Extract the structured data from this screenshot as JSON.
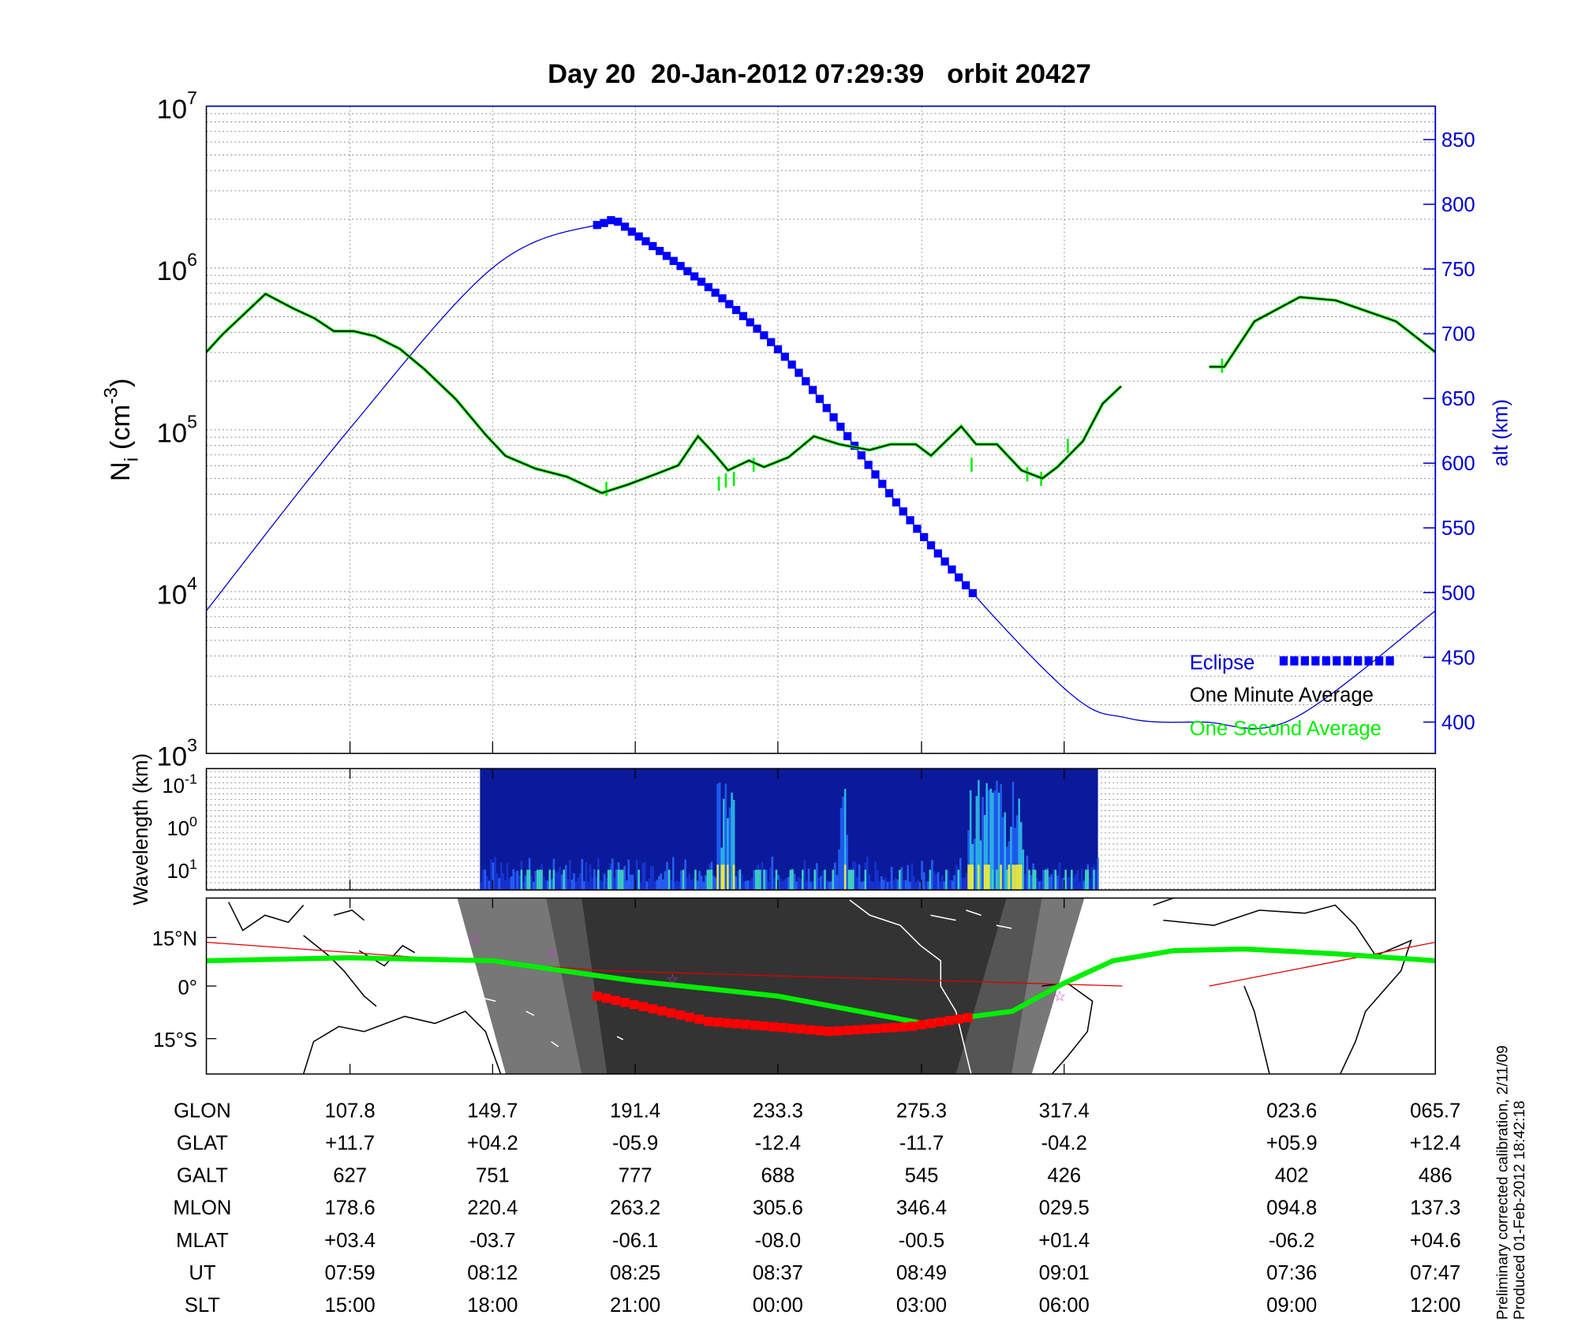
{
  "title": "Day 20  20-Jan-2012 07:29:39   orbit 20427",
  "colors": {
    "alt": "#0000cc",
    "eclipse": "#0000ff",
    "minute": "#000000",
    "second": "#00ee00",
    "map_track": "#00ee00",
    "map_eclipse": "#ff0000",
    "mag_equator": "#dd0000",
    "star": "#cc33cc"
  },
  "chart_data": [
    {
      "type": "line",
      "panel": "ion-density",
      "x_unit": "minutes from panel start",
      "xlim": [
        0,
        106
      ],
      "ylabel": {
        "base": "N",
        "sub": "i",
        "open": " (cm",
        "sup": "-3",
        "close": ")"
      },
      "yscale": "log",
      "ylim": [
        1000,
        10000000
      ],
      "ytick_base": "10",
      "ytick_exponents": [
        "3",
        "4",
        "5",
        "6",
        "7"
      ],
      "y2label": "alt (km)",
      "y2lim": [
        378,
        875
      ],
      "y2ticks": [
        "400",
        "450",
        "500",
        "550",
        "600",
        "650",
        "700",
        "750",
        "800",
        "850"
      ],
      "x_ticks_minutes": [
        12.4,
        24.7,
        37.0,
        49.3,
        61.7,
        74.0
      ],
      "series": [
        {
          "name": "One Minute Average",
          "segments": [
            [
              [
                0,
                302000
              ],
              [
                1.4,
                389000
              ],
              [
                5.1,
                692000
              ],
              [
                7.5,
                562000
              ],
              [
                9.3,
                490000
              ],
              [
                11.0,
                407000
              ],
              [
                12.7,
                407000
              ],
              [
                14.5,
                380000
              ],
              [
                16.7,
                316000
              ],
              [
                18.8,
                237000
              ],
              [
                21.5,
                155000
              ],
              [
                24.1,
                93000
              ],
              [
                25.8,
                69000
              ],
              [
                28.4,
                57500
              ],
              [
                31.1,
                51300
              ],
              [
                34.1,
                40700
              ],
              [
                36.3,
                45700
              ],
              [
                38.9,
                53700
              ],
              [
                40.7,
                60300
              ],
              [
                42.4,
                91200
              ],
              [
                43.7,
                72400
              ],
              [
                45.0,
                56200
              ],
              [
                46.8,
                64600
              ],
              [
                48.1,
                58900
              ],
              [
                50.2,
                67600
              ],
              [
                52.4,
                91200
              ],
              [
                54.6,
                81300
              ],
              [
                57.2,
                75000
              ],
              [
                59.0,
                81300
              ],
              [
                61.2,
                81300
              ],
              [
                62.5,
                69200
              ],
              [
                65.1,
                105000
              ],
              [
                66.4,
                81300
              ],
              [
                68.2,
                81300
              ],
              [
                70.3,
                56200
              ],
              [
                72.1,
                50100
              ],
              [
                73.4,
                58900
              ],
              [
                75.6,
                85100
              ],
              [
                77.3,
                145000
              ],
              [
                78.9,
                186000
              ]
            ],
            [
              [
                86.5,
                245000
              ],
              [
                87.8,
                245000
              ],
              [
                90.4,
                468000
              ],
              [
                94.3,
                661000
              ],
              [
                97.4,
                631000
              ],
              [
                102.6,
                468000
              ],
              [
                106.0,
                302000
              ]
            ]
          ]
        },
        {
          "name": "One Second Average",
          "spikes": [
            [
              34.5,
              39000
            ],
            [
              44.2,
              42000
            ],
            [
              44.8,
              44000
            ],
            [
              45.5,
              45000
            ],
            [
              47.2,
              55000
            ],
            [
              66.0,
              55000
            ],
            [
              70.8,
              48000
            ],
            [
              72.0,
              45000
            ],
            [
              74.3,
              72000
            ],
            [
              87.6,
              225000
            ]
          ]
        },
        {
          "name": "Altitude",
          "axis": "right",
          "points": [
            [
              0,
              486
            ],
            [
              12.4,
              627
            ],
            [
              24.7,
              751
            ],
            [
              33.7,
              784
            ],
            [
              37.0,
              777
            ],
            [
              49.3,
              688
            ],
            [
              61.7,
              545
            ],
            [
              74.0,
              426
            ],
            [
              79.5,
              403
            ],
            [
              86.0,
              400
            ],
            [
              93.6,
              402
            ],
            [
              106.0,
              486
            ]
          ]
        },
        {
          "name": "Eclipse",
          "range": [
            33.7,
            66.4
          ]
        }
      ],
      "legend": {
        "position": "bottom-right",
        "entries": [
          "Eclipse",
          "One Minute Average",
          "One Second Average"
        ]
      }
    },
    {
      "type": "heatmap",
      "panel": "spectrogram",
      "ylabel": "Wavelength (km)",
      "ytick_base": "10",
      "ytick_exponents": [
        "-1",
        "0",
        "1"
      ],
      "x_range_minutes": [
        23.6,
        76.9
      ],
      "bright_bands_minutes": [
        [
          44.0,
          45.5
        ],
        [
          54.4,
          55.2
        ],
        [
          65.5,
          70.5
        ]
      ]
    },
    {
      "type": "line",
      "panel": "map",
      "yticks": [
        "15°N",
        "0°",
        "15°S"
      ],
      "track_lat": [
        [
          0,
          7.5
        ],
        [
          12.4,
          8.4
        ],
        [
          24.7,
          7.5
        ],
        [
          37.0,
          1.5
        ],
        [
          49.3,
          -3
        ],
        [
          61.7,
          -11
        ],
        [
          69.5,
          -7.5
        ],
        [
          74.0,
          0.9
        ],
        [
          78.2,
          7.5
        ],
        [
          83.4,
          10.5
        ],
        [
          89.5,
          11
        ],
        [
          97.3,
          9.6
        ],
        [
          106.0,
          7.5
        ]
      ],
      "eclipse_lat": [
        [
          33.7,
          -3
        ],
        [
          43.3,
          -10.5
        ],
        [
          53.8,
          -13.5
        ],
        [
          60.8,
          -12
        ],
        [
          66.4,
          -9
        ]
      ],
      "mag_equator": [
        [
          [
            0,
            13
          ],
          [
            34.6,
            4.5
          ],
          [
            79.0,
            0
          ]
        ],
        [
          [
            86.5,
            0
          ],
          [
            106,
            13
          ]
        ]
      ],
      "stars": [
        [
          23.2,
          14
        ],
        [
          29.8,
          9.9
        ],
        [
          40.2,
          2.1
        ],
        [
          73.6,
          -3
        ]
      ]
    }
  ],
  "table": {
    "rows": [
      {
        "label": "GLON",
        "values": [
          "107.8",
          "149.7",
          "191.4",
          "233.3",
          "275.3",
          "317.4",
          "023.6",
          "065.7"
        ]
      },
      {
        "label": "GLAT",
        "values": [
          "+11.7",
          "+04.2",
          "-05.9",
          "-12.4",
          "-11.7",
          "-04.2",
          "+05.9",
          "+12.4"
        ]
      },
      {
        "label": "GALT",
        "values": [
          "627",
          "751",
          "777",
          "688",
          "545",
          "426",
          "402",
          "486"
        ]
      },
      {
        "label": "MLON",
        "values": [
          "178.6",
          "220.4",
          "263.2",
          "305.6",
          "346.4",
          "029.5",
          "094.8",
          "137.3"
        ]
      },
      {
        "label": "MLAT",
        "values": [
          "+03.4",
          "-03.7",
          "-06.1",
          "-08.0",
          "-00.5",
          "+01.4",
          "-06.2",
          "+04.6"
        ]
      },
      {
        "label": "UT",
        "values": [
          "07:59",
          "08:12",
          "08:25",
          "08:37",
          "08:49",
          "09:01",
          "07:36",
          "07:47"
        ]
      },
      {
        "label": "SLT",
        "values": [
          "15:00",
          "18:00",
          "21:00",
          "00:00",
          "03:00",
          "06:00",
          "09:00",
          "12:00"
        ]
      }
    ]
  },
  "footer": {
    "line1": "Preliminary corrected calibration, 2/11/09",
    "line2": "Produced 01-Feb-2012 18:42:18"
  }
}
